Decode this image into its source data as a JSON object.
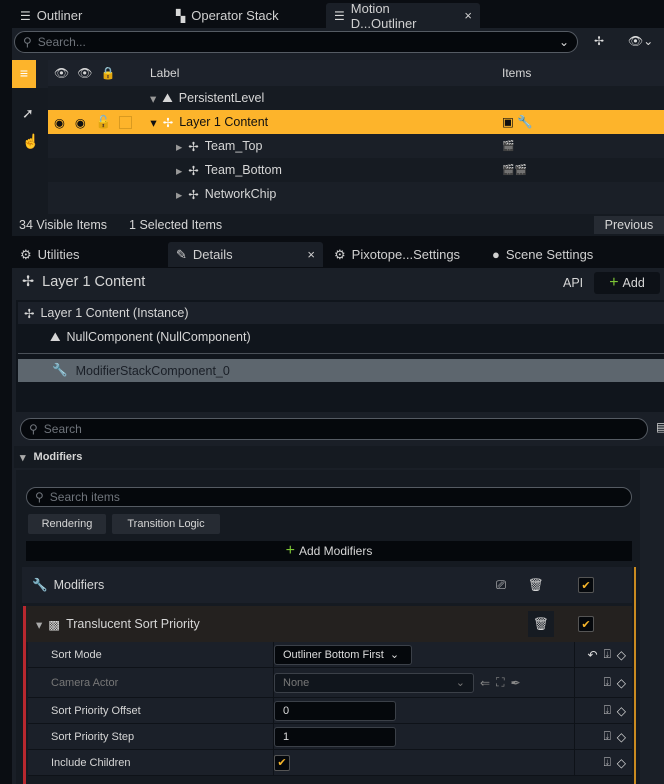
{
  "top_tabs": [
    {
      "label": "Outliner",
      "icon": "outliner-icon"
    },
    {
      "label": "Operator Stack",
      "icon": "operator-stack-icon"
    },
    {
      "label": "Motion D...Outliner",
      "icon": "outliner-icon",
      "active": true,
      "close": "×"
    }
  ],
  "outliner": {
    "search_placeholder": "Search...",
    "columns": {
      "label": "Label",
      "items": "Items"
    },
    "rows": [
      {
        "label": "PersistentLevel",
        "icon": "level-icon"
      },
      {
        "label": "Layer 1 Content",
        "icon": "actor-icon",
        "selected": true
      },
      {
        "label": "Team_Top",
        "icon": "actor-icon"
      },
      {
        "label": "Team_Bottom",
        "icon": "actor-icon"
      },
      {
        "label": "NetworkChip",
        "icon": "actor-icon"
      }
    ],
    "status": {
      "visible": "34 Visible Items",
      "selected": "1 Selected Items",
      "previous": "Previous"
    }
  },
  "bottom_tabs": [
    {
      "label": "Utilities"
    },
    {
      "label": "Details",
      "active": true,
      "close": "×"
    },
    {
      "label": "Pixotope...Settings"
    },
    {
      "label": "Scene Settings"
    }
  ],
  "details": {
    "title": "Layer 1 Content",
    "api": "API",
    "add": "Add",
    "components": [
      "Layer 1 Content (Instance)",
      "NullComponent (NullComponent)",
      "ModifierStackComponent_0"
    ],
    "search_placeholder": "Search",
    "section": "Modifiers",
    "search_items_placeholder": "Search items",
    "filters": [
      "Rendering",
      "Transition Logic"
    ],
    "add_modifiers": "Add Modifiers",
    "modifiers_header": "Modifiers",
    "modifier": {
      "name": "Translucent Sort Priority",
      "props": {
        "sort_mode": {
          "label": "Sort Mode",
          "value": "Outliner Bottom First"
        },
        "camera": {
          "label": "Camera Actor",
          "value": "None"
        },
        "offset": {
          "label": "Sort Priority Offset",
          "value": "0"
        },
        "step": {
          "label": "Sort Priority Step",
          "value": "1"
        },
        "children": {
          "label": "Include Children",
          "checked": true
        }
      }
    }
  },
  "colors": {
    "accent": "#fdb42b",
    "selected_component": "#5d666e"
  }
}
